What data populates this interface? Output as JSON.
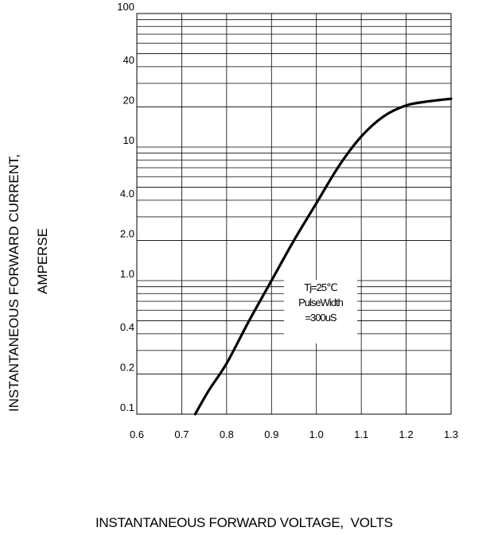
{
  "chart_data": {
    "type": "line",
    "title": "",
    "xlabel": "INSTANTANEOUS FORWARD VOLTAGE,  VOLTS",
    "ylabel_line1": "INSTANTANEOUS FORWARD CURRENT,",
    "ylabel_line2": "AMPERSE",
    "x_ticks": [
      "0.6",
      "0.7",
      "0.8",
      "0.9",
      "1.0",
      "1.1",
      "1.2",
      "1.3"
    ],
    "y_ticks": [
      "0.1",
      "0.2",
      "0.4",
      "1.0",
      "2.0",
      "4.0",
      "10",
      "20",
      "40",
      "100"
    ],
    "xlim": [
      0.6,
      1.3
    ],
    "ylim": [
      0.1,
      100
    ],
    "y_scale": "log",
    "grid": true,
    "annotation": [
      "Tj=25℃",
      "PulseWidth",
      "=300uS"
    ],
    "series": [
      {
        "x": [
          0.73,
          0.76,
          0.8,
          0.85,
          0.9,
          0.95,
          1.0,
          1.05,
          1.1,
          1.15,
          1.2,
          1.25,
          1.3
        ],
        "y": [
          0.1,
          0.15,
          0.24,
          0.5,
          1.0,
          2.0,
          3.8,
          7.2,
          12.0,
          17.0,
          20.5,
          22.0,
          23.0
        ]
      }
    ]
  }
}
